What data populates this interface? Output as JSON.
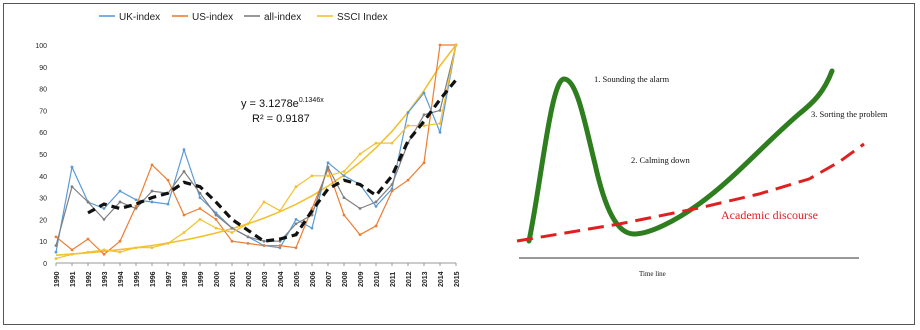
{
  "chart_data": [
    {
      "type": "line",
      "x": [
        1990,
        1991,
        1992,
        1993,
        1994,
        1995,
        1996,
        1997,
        1998,
        1999,
        2000,
        2001,
        2002,
        2003,
        2004,
        2005,
        2006,
        2007,
        2008,
        2009,
        2010,
        2011,
        2012,
        2013,
        2014,
        2015
      ],
      "ylim": [
        0,
        100
      ],
      "yticks": [
        0,
        10,
        20,
        30,
        40,
        50,
        60,
        70,
        80,
        90,
        100
      ],
      "series": [
        {
          "name": "UK-index",
          "color": "#5b9bd5",
          "values": [
            5,
            44,
            28,
            25,
            33,
            29,
            28,
            27,
            52,
            30,
            23,
            16,
            12,
            8,
            7,
            20,
            16,
            46,
            40,
            36,
            26,
            34,
            69,
            78,
            60,
            100
          ]
        },
        {
          "name": "US-index",
          "color": "#ed7d31",
          "values": [
            12,
            6,
            11,
            4,
            10,
            26,
            45,
            38,
            22,
            25,
            20,
            10,
            9,
            8,
            8,
            7,
            25,
            43,
            22,
            13,
            17,
            33,
            38,
            46,
            100,
            100
          ]
        },
        {
          "name": "all-index",
          "color": "#7f7f7f",
          "values": [
            8,
            35,
            28,
            20,
            28,
            25,
            33,
            32,
            42,
            32,
            22,
            16,
            12,
            10,
            10,
            18,
            22,
            44,
            30,
            25,
            28,
            36,
            55,
            68,
            70,
            100
          ]
        },
        {
          "name": "SSCI Index",
          "color": "#f2c12e",
          "values": [
            2,
            4,
            5,
            6,
            5,
            7,
            7,
            9,
            14,
            20,
            16,
            14,
            18,
            28,
            24,
            35,
            40,
            40,
            42,
            50,
            55,
            55,
            63,
            63,
            64,
            100
          ]
        }
      ],
      "trend": {
        "label_line1": "y = 3.1278e",
        "label_exp": "0.1346x",
        "label_line2": "R² = 0.9187",
        "exp_fit": {
          "a": 3.1278,
          "b": 0.1346
        },
        "moving_avg": [
          null,
          null,
          23,
          27,
          25,
          27,
          30,
          32,
          37,
          35,
          28,
          20,
          15,
          10,
          11,
          13,
          24,
          34,
          38,
          36,
          31,
          40,
          56,
          65,
          75,
          84
        ]
      },
      "grid": false,
      "legend_position": "top"
    },
    {
      "type": "diagram",
      "labels": {
        "alarm": "1. Sounding the alarm",
        "calming": "2. Calming down",
        "sorting": "3. Sorting the problem",
        "academic": "Academic discourse",
        "xlabel": "Time line"
      },
      "colors": {
        "green": "#2e7d1e",
        "red": "#e02020"
      }
    }
  ]
}
